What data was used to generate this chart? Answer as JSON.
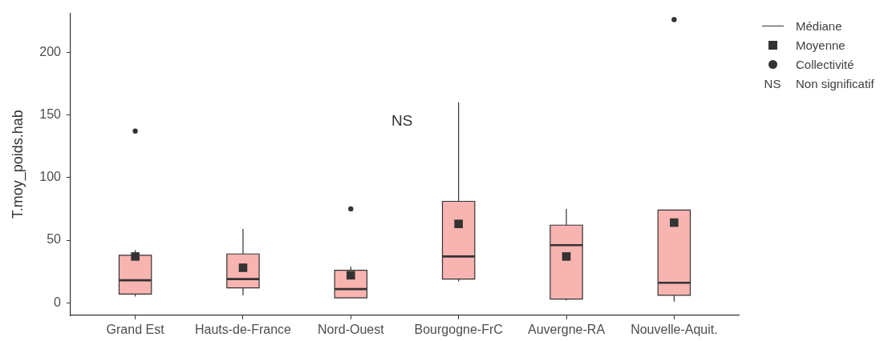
{
  "chart_data": {
    "type": "box",
    "ylabel": "T.moy_poids.hab",
    "categories": [
      "Grand Est",
      "Hauts-de-France",
      "Nord-Ouest",
      "Bourgogne-FrC",
      "Auvergne-RA",
      "Nouvelle-Aquit."
    ],
    "ylim": [
      -10,
      231
    ],
    "yticks": [
      0,
      50,
      100,
      150,
      200
    ],
    "grid": false,
    "legend": "right",
    "series": [
      {
        "color": "#f8b4b0",
        "boxes": [
          {
            "low": 5,
            "q1": 7,
            "median": 18,
            "q3": 38,
            "high": 42
          },
          {
            "low": 6,
            "q1": 12,
            "median": 19,
            "q3": 39,
            "high": 59
          },
          {
            "low": 4,
            "q1": 4,
            "median": 11,
            "q3": 26,
            "high": 29
          },
          {
            "low": 17,
            "q1": 19,
            "median": 37,
            "q3": 81,
            "high": 160
          },
          {
            "low": 2,
            "q1": 3,
            "median": 46,
            "q3": 62,
            "high": 75
          },
          {
            "low": 1,
            "q1": 6,
            "median": 16,
            "q3": 74,
            "high": 74
          }
        ]
      },
      {
        "type": "scatter",
        "name": "Moyenne",
        "color": "#333333",
        "marker": "square",
        "values": [
          37,
          28,
          22,
          63,
          37,
          64
        ]
      },
      {
        "type": "scatter",
        "name": "Collectivité",
        "color": "#333333",
        "marker": "circle",
        "values": [
          137,
          null,
          75,
          null,
          null,
          226
        ]
      }
    ],
    "annotations": [
      "NS",
      "Médiane",
      "NS",
      "Non significatif"
    ]
  }
}
